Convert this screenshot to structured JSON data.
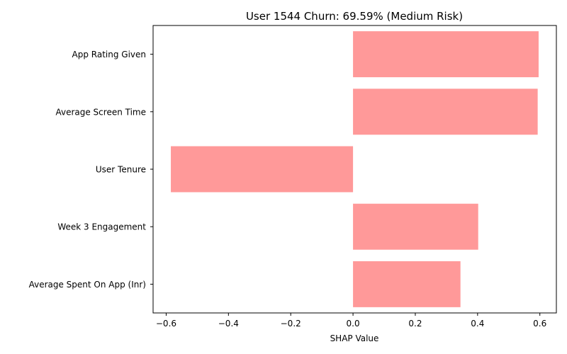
{
  "chart_data": {
    "type": "bar",
    "orientation": "horizontal",
    "title": "User 1544 Churn: 69.59% (Medium Risk)",
    "xlabel": "SHAP Value",
    "ylabel": "",
    "categories": [
      "App Rating Given",
      "Average Screen Time",
      "User Tenure",
      "Week 3 Engagement",
      "Average Spent On App (Inr)"
    ],
    "values": [
      0.596,
      0.593,
      -0.585,
      0.402,
      0.345
    ],
    "xlim": [
      -0.642,
      0.653
    ],
    "xticks": [
      -0.6,
      -0.4,
      -0.2,
      0.0,
      0.2,
      0.4,
      0.6
    ],
    "xtick_labels": [
      "−0.6",
      "−0.4",
      "−0.2",
      "0.0",
      "0.2",
      "0.4",
      "0.6"
    ],
    "bar_color": "#ff9999",
    "grid": false,
    "legend": "none"
  }
}
